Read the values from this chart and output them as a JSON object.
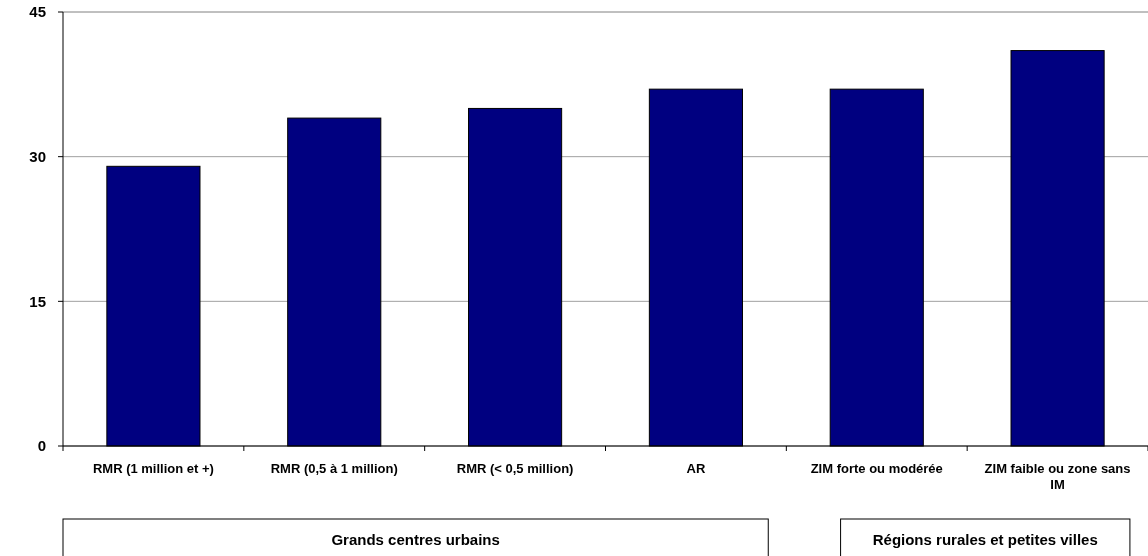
{
  "chart_data": {
    "type": "bar",
    "categories": [
      "RMR (1 million et +)",
      "RMR (0,5 à 1 million)",
      "RMR (< 0,5 million)",
      "AR",
      "ZIM forte ou modérée",
      "ZIM faible ou zone sans IM"
    ],
    "values": [
      29,
      34,
      35,
      37,
      37,
      41
    ],
    "color": "#000080",
    "ylim": [
      0,
      45
    ],
    "yticks": [
      0,
      15,
      30,
      45
    ],
    "grid": "y",
    "annotations": [
      "Grands centres urbains",
      "Régions rurales et petites villes"
    ]
  }
}
